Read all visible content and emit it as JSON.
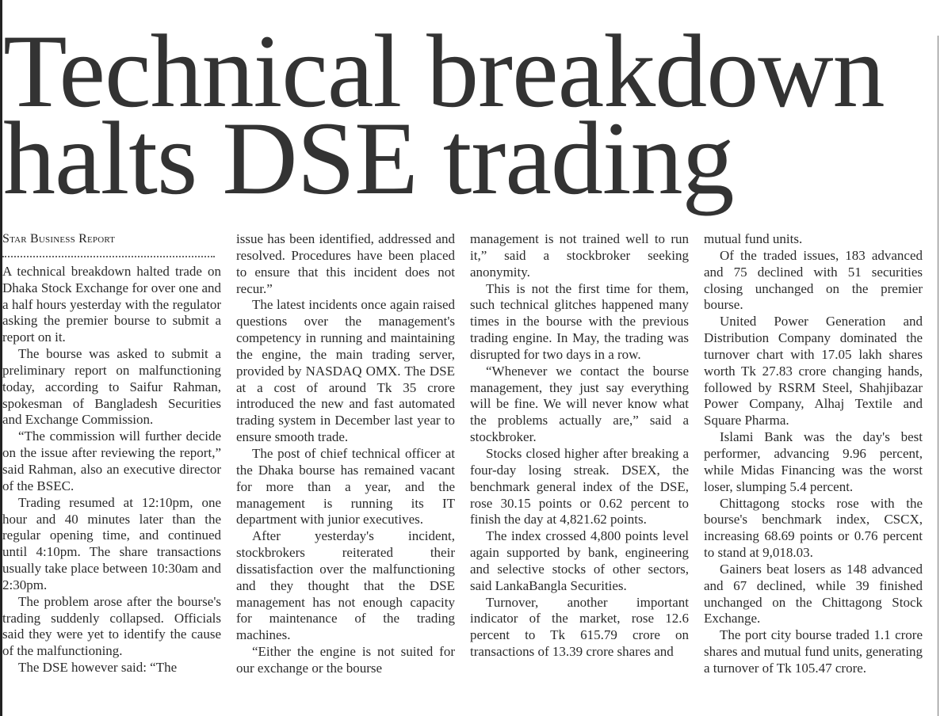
{
  "article": {
    "headline_line1": "Technical breakdown",
    "headline_line2": "halts DSE trading",
    "byline": "Star Business Report",
    "columns": [
      {
        "paragraphs": [
          "A technical breakdown halted trade on Dhaka Stock Exchange for over one and a half hours yesterday with the regulator asking the premier bourse to submit a report on it.",
          "The bourse was asked to submit a preliminary report on malfunctioning today, according to Saifur Rahman, spokesman of Bangladesh Securities and Exchange Commission.",
          "“The commission will further decide on the issue after reviewing the report,” said Rahman, also an executive director of the BSEC.",
          "Trading resumed at 12:10pm, one hour and 40 minutes later than the regular opening time, and continued until 4:10pm. The share transactions usually take place between 10:30am and 2:30pm.",
          "The problem arose after the bourse's trading suddenly collapsed. Officials said they were yet to identify the cause of the malfunctioning.",
          "The DSE however said: “The"
        ]
      },
      {
        "paragraphs": [
          "issue has been identified, addressed and resolved. Procedures have been placed to ensure that this incident does not recur.”",
          "The latest incidents once again raised questions over the management's competency in running and maintaining the engine, the main trading server, provided by NASDAQ OMX. The DSE at a cost of around Tk 35 crore introduced the new and fast automated trading system in December last year to ensure smooth trade.",
          "The post of chief technical officer at the Dhaka bourse has remained vacant for more than a year, and the management is running its IT department with junior executives.",
          "After yesterday's incident, stockbrokers reiterated their dissatisfaction over the malfunctioning and they thought that the DSE management has not enough capacity for maintenance of the trading machines.",
          "“Either the engine is not suited for our exchange or the bourse"
        ]
      },
      {
        "paragraphs": [
          "management is not trained well to run it,” said a stockbroker seeking anonymity.",
          "This is not the first time for them, such technical glitches happened many times in the bourse with the previous trading engine. In May, the trading was disrupted for two days in a row.",
          "“Whenever we contact the bourse management, they just say everything will be fine. We will never know what the problems actually are,” said a stockbroker.",
          "Stocks closed higher after breaking a four-day losing streak. DSEX, the benchmark general index of the DSE, rose 30.15 points or 0.62 percent to finish the day at 4,821.62 points.",
          "The index crossed 4,800 points level again supported by bank, engineering and selective stocks of other sectors, said LankaBangla Securities.",
          "Turnover, another important indicator of the market, rose 12.6 percent to Tk 615.79 crore on transactions of 13.39 crore shares and"
        ]
      },
      {
        "paragraphs": [
          "mutual fund units.",
          "Of the traded issues, 183 advanced and 75 declined with 51 securities closing unchanged on the premier bourse.",
          "United Power Generation and Distribution Company dominated the turnover chart with 17.05 lakh shares worth Tk 27.83 crore changing hands, followed by RSRM Steel, Shahjibazar Power Company, Alhaj Textile and Square Pharma.",
          "Islami Bank was the day's best performer, advancing 9.96 percent, while Midas Financing was the worst loser, slumping 5.4 percent.",
          "Chittagong stocks rose with the bourse's benchmark index, CSCX, increasing 68.69 points or 0.76 percent to stand at 9,018.03.",
          "Gainers beat losers as 148 advanced and 67 declined, while 39 finished unchanged on the Chittagong Stock Exchange.",
          "The port city bourse traded 1.1 crore shares and mutual fund units, generating a turnover of Tk 105.47 crore."
        ]
      }
    ]
  }
}
